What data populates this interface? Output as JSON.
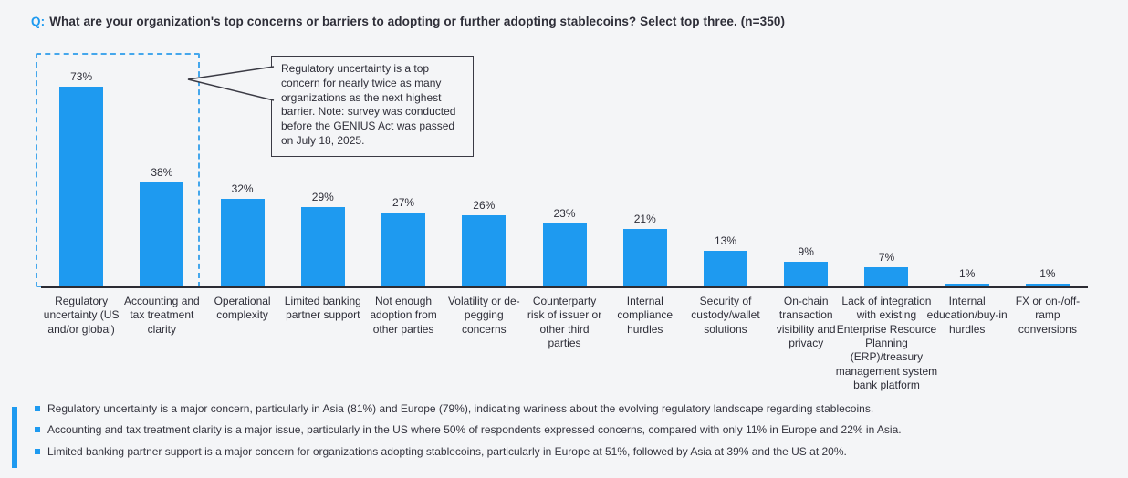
{
  "header": {
    "q_label": "Q:",
    "question": "What are your organization's top concerns or barriers to adopting or further adopting stablecoins? Select top three. (n=350)"
  },
  "chart_data": {
    "type": "bar",
    "categories": [
      "Regulatory uncertainty (US and/or global)",
      "Accounting and tax treatment clarity",
      "Operational complexity",
      "Limited banking partner support",
      "Not enough adoption from other parties",
      "Volatility or de-pegging concerns",
      "Counterparty risk of issuer or other third parties",
      "Internal compliance hurdles",
      "Security of custody/wallet solutions",
      "On-chain transaction visibility and privacy",
      "Lack of integration with existing Enterprise Resource Planning (ERP)/treasury management system bank platform",
      "Internal education/buy-in hurdles",
      "FX or on-/off-ramp conversions"
    ],
    "values": [
      73,
      38,
      32,
      29,
      27,
      26,
      23,
      21,
      13,
      9,
      7,
      1,
      1
    ],
    "value_suffix": "%",
    "ylim": [
      0,
      80
    ],
    "grid": false,
    "data_labels": true,
    "legend": null,
    "bar_color": "#1e9af0",
    "highlight_box": {
      "style": "blue-dashed-rectangle",
      "covers_categories": [
        "Regulatory uncertainty (US and/or global)",
        "Accounting and tax treatment clarity"
      ]
    },
    "annotation": "Regulatory uncertainty is a top concern for nearly twice as many organizations as the next highest barrier. Note: survey was conducted before the GENIUS Act was passed on July 18, 2025."
  },
  "footnotes": [
    "Regulatory uncertainty is a major concern, particularly in Asia (81%) and Europe (79%), indicating wariness about the evolving regulatory landscape regarding stablecoins.",
    "Accounting and tax treatment clarity is a major issue, particularly in the US where 50% of respondents expressed concerns, compared with only 11% in Europe and 22% in Asia.",
    "Limited banking partner support is a major concern for organizations adopting stablecoins, particularly in Europe at 51%, followed by Asia at 39% and the US at 20%."
  ],
  "colors": {
    "accent_blue": "#1e9af0",
    "dashed_border_blue": "#45a7ec",
    "text_dark": "#2e2e38",
    "background": "#f4f5f7",
    "callout_border": "#3a3a44"
  }
}
